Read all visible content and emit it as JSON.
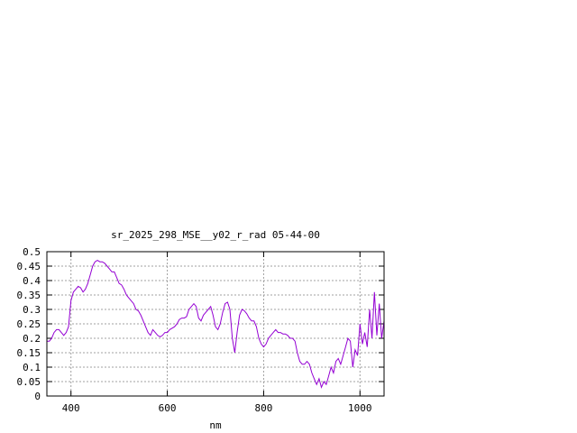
{
  "chart_data": {
    "type": "line",
    "title": "sr_2025_298_MSE__y02_r_rad 05-44-00",
    "xlabel": "nm",
    "ylabel": "",
    "xlim": [
      350,
      1050
    ],
    "ylim": [
      0,
      0.5
    ],
    "x_ticks": [
      400,
      600,
      800,
      1000
    ],
    "y_ticks": [
      0,
      0.05,
      0.1,
      0.15,
      0.2,
      0.25,
      0.3,
      0.35,
      0.4,
      0.45,
      0.5
    ],
    "y_tick_labels": [
      "0",
      "0.05",
      "0.1",
      "0.15",
      "0.2",
      "0.25",
      "0.3",
      "0.35",
      "0.4",
      "0.45",
      "0.5"
    ],
    "grid": true,
    "line_color": "#9400d3",
    "series": [
      {
        "x": [
          350,
          355,
          360,
          365,
          370,
          375,
          380,
          385,
          390,
          395,
          400,
          405,
          410,
          415,
          420,
          425,
          430,
          435,
          440,
          445,
          450,
          455,
          460,
          465,
          470,
          475,
          480,
          485,
          490,
          495,
          500,
          505,
          510,
          515,
          520,
          525,
          530,
          535,
          540,
          545,
          550,
          555,
          560,
          565,
          570,
          575,
          580,
          585,
          590,
          595,
          600,
          605,
          610,
          615,
          620,
          625,
          630,
          635,
          640,
          645,
          650,
          655,
          660,
          665,
          670,
          675,
          680,
          685,
          690,
          695,
          700,
          705,
          710,
          715,
          720,
          725,
          730,
          735,
          740,
          745,
          750,
          755,
          760,
          765,
          770,
          775,
          780,
          785,
          790,
          795,
          800,
          805,
          810,
          815,
          820,
          825,
          830,
          835,
          840,
          845,
          850,
          855,
          860,
          865,
          870,
          875,
          880,
          885,
          890,
          895,
          900,
          905,
          910,
          915,
          920,
          925,
          930,
          935,
          940,
          945,
          950,
          955,
          960,
          965,
          970,
          975,
          980,
          985,
          990,
          995,
          1000,
          1005,
          1010,
          1015,
          1020,
          1025,
          1030,
          1035,
          1040,
          1045,
          1050
        ],
        "y": [
          0.19,
          0.19,
          0.2,
          0.22,
          0.23,
          0.23,
          0.22,
          0.21,
          0.22,
          0.24,
          0.33,
          0.36,
          0.37,
          0.38,
          0.375,
          0.36,
          0.37,
          0.39,
          0.42,
          0.45,
          0.465,
          0.47,
          0.465,
          0.465,
          0.46,
          0.45,
          0.44,
          0.43,
          0.43,
          0.41,
          0.39,
          0.385,
          0.37,
          0.35,
          0.34,
          0.33,
          0.32,
          0.3,
          0.295,
          0.28,
          0.26,
          0.24,
          0.22,
          0.21,
          0.23,
          0.22,
          0.21,
          0.205,
          0.21,
          0.22,
          0.22,
          0.23,
          0.235,
          0.24,
          0.25,
          0.265,
          0.27,
          0.27,
          0.275,
          0.3,
          0.31,
          0.32,
          0.31,
          0.27,
          0.26,
          0.28,
          0.29,
          0.3,
          0.31,
          0.28,
          0.24,
          0.23,
          0.25,
          0.29,
          0.32,
          0.325,
          0.3,
          0.2,
          0.15,
          0.22,
          0.28,
          0.3,
          0.295,
          0.285,
          0.27,
          0.26,
          0.26,
          0.24,
          0.2,
          0.18,
          0.17,
          0.18,
          0.2,
          0.21,
          0.22,
          0.23,
          0.22,
          0.22,
          0.215,
          0.215,
          0.21,
          0.2,
          0.2,
          0.19,
          0.15,
          0.12,
          0.11,
          0.11,
          0.12,
          0.11,
          0.08,
          0.06,
          0.04,
          0.06,
          0.03,
          0.05,
          0.04,
          0.07,
          0.1,
          0.08,
          0.12,
          0.13,
          0.11,
          0.14,
          0.17,
          0.2,
          0.19,
          0.1,
          0.16,
          0.14,
          0.25,
          0.18,
          0.22,
          0.17,
          0.3,
          0.2,
          0.36,
          0.21,
          0.32,
          0.2,
          0.26
        ]
      }
    ]
  }
}
